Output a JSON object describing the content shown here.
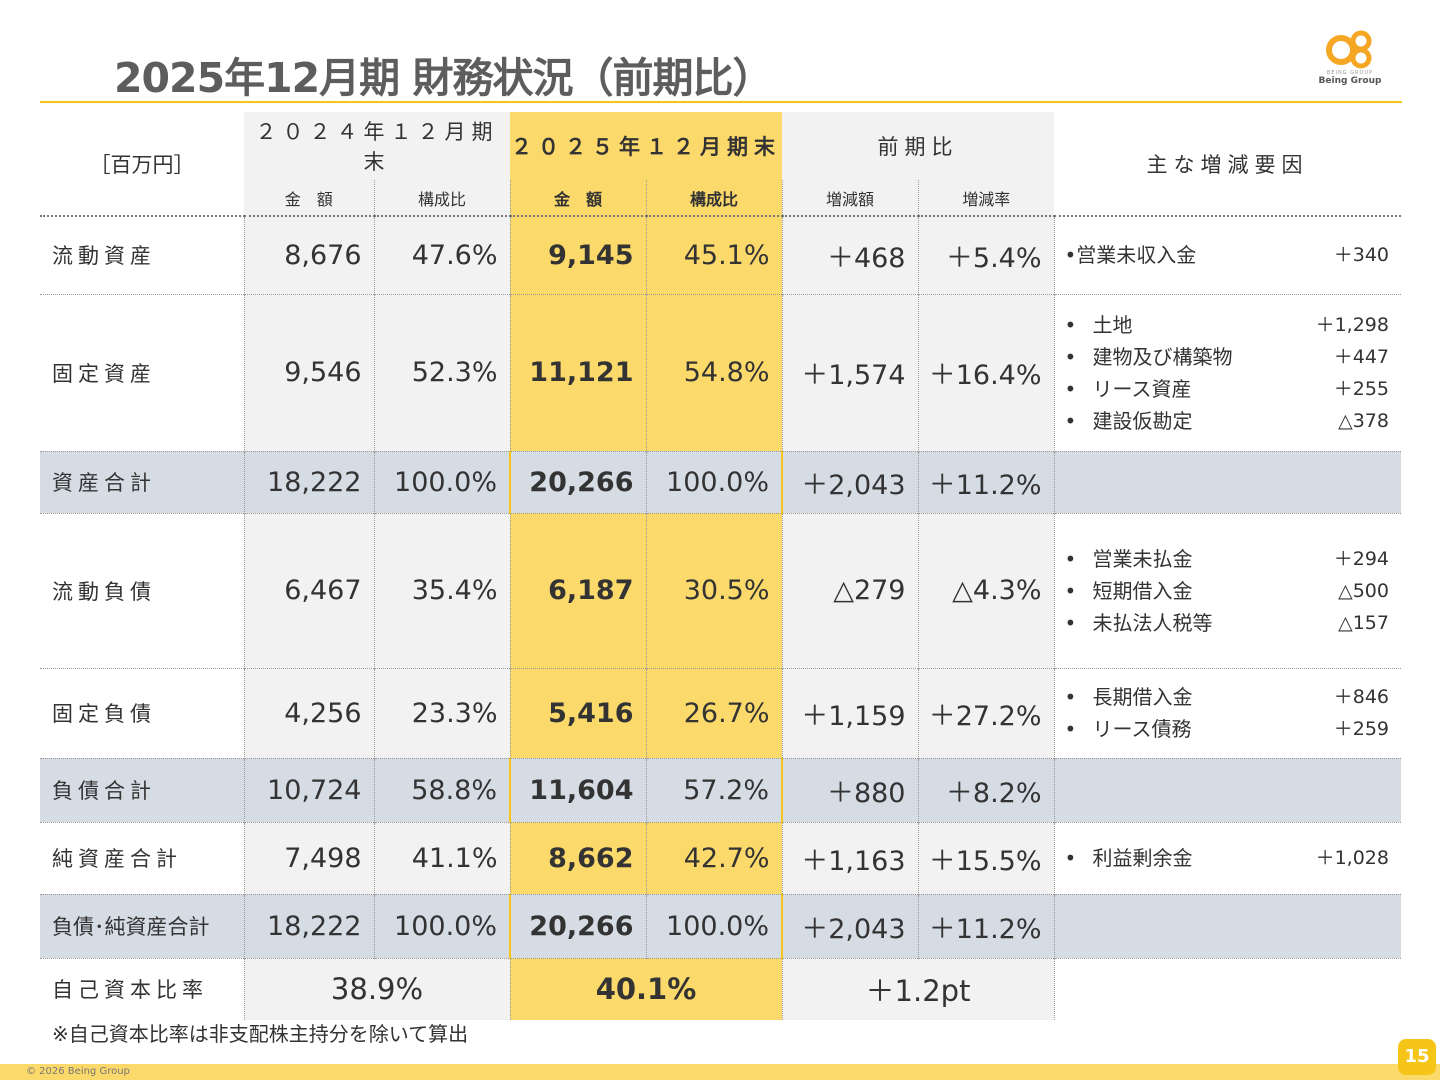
{
  "title": "2025年12月期 財務状況（前期比）",
  "logo": {
    "text": "Being Group",
    "small": "BEING GROUP",
    "icon": "being-group-logo"
  },
  "header": {
    "unit": "［百万円］",
    "col2024": "２０２４年１２月期末",
    "col2025": "２０２５年１２月期末",
    "diff": "前期比",
    "reasons": "主な増減要因",
    "amount": "金　額",
    "ratio": "構成比",
    "diff_amount": "増減額",
    "diff_rate": "増減率"
  },
  "rows": [
    {
      "label": "流動資産",
      "a24": "8,676",
      "r24": "47.6%",
      "a25": "9,145",
      "r25": "45.1%",
      "d": "＋468",
      "dr": "＋5.4%",
      "reasons": [
        {
          "bullet": "•",
          "name": "営業未収入金",
          "value": "＋340"
        }
      ]
    },
    {
      "label": "固定資産",
      "a24": "9,546",
      "r24": "52.3%",
      "a25": "11,121",
      "r25": "54.8%",
      "d": "＋1,574",
      "dr": "＋16.4%",
      "reasons": [
        {
          "bullet": "•",
          "name": "土地",
          "value": "＋1,298"
        },
        {
          "bullet": "•",
          "name": "建物及び構築物",
          "value": "＋447"
        },
        {
          "bullet": "•",
          "name": "リース資産",
          "value": "＋255"
        },
        {
          "bullet": "•",
          "name": "建設仮勘定",
          "value": "△378"
        }
      ]
    },
    {
      "label": "資産合計",
      "a24": "18,222",
      "r24": "100.0%",
      "a25": "20,266",
      "r25": "100.0%",
      "d": "＋2,043",
      "dr": "＋11.2%",
      "reasons": []
    },
    {
      "label": "流動負債",
      "a24": "6,467",
      "r24": "35.4%",
      "a25": "6,187",
      "r25": "30.5%",
      "d": "△279",
      "dr": "△4.3%",
      "reasons": [
        {
          "bullet": "•",
          "name": "営業未払金",
          "value": "＋294"
        },
        {
          "bullet": "•",
          "name": "短期借入金",
          "value": "△500"
        },
        {
          "bullet": "•",
          "name": "未払法人税等",
          "value": "△157"
        }
      ]
    },
    {
      "label": "固定負債",
      "a24": "4,256",
      "r24": "23.3%",
      "a25": "5,416",
      "r25": "26.7%",
      "d": "＋1,159",
      "dr": "＋27.2%",
      "reasons": [
        {
          "bullet": "•",
          "name": "長期借入金",
          "value": "＋846"
        },
        {
          "bullet": "•",
          "name": "リース債務",
          "value": "＋259"
        }
      ]
    },
    {
      "label": "負債合計",
      "a24": "10,724",
      "r24": "58.8%",
      "a25": "11,604",
      "r25": "57.2%",
      "d": "＋880",
      "dr": "＋8.2%",
      "reasons": []
    },
    {
      "label": "純資産合計",
      "a24": "7,498",
      "r24": "41.1%",
      "a25": "8,662",
      "r25": "42.7%",
      "d": "＋1,163",
      "dr": "＋15.5%",
      "reasons": [
        {
          "bullet": "•",
          "name": "利益剰余金",
          "value": "＋1,028"
        }
      ]
    },
    {
      "label": "負債･純資産合計",
      "a24": "18,222",
      "r24": "100.0%",
      "a25": "20,266",
      "r25": "100.0%",
      "d": "＋2,043",
      "dr": "＋11.2%",
      "reasons": []
    }
  ],
  "equity_ratio": {
    "label": "自己資本比率",
    "v24": "38.9%",
    "v25": "40.1%",
    "diff": "＋1.2pt"
  },
  "note": "※自己資本比率は非支配株主持分を除いて算出",
  "footer": {
    "copyright": "© 2026 Being Group",
    "page": "15"
  },
  "colors": {
    "accent": "#f5c518",
    "highlight": "#fcd96b",
    "total_row": "#d6dce4",
    "header_bg": "#f2f2f2"
  }
}
